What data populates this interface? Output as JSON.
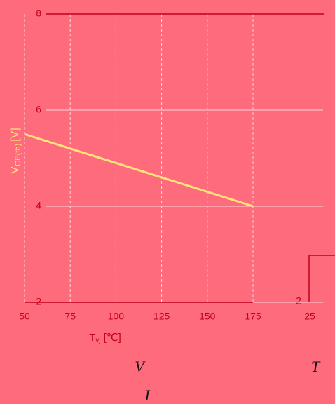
{
  "chart_data": {
    "type": "line",
    "y_label_main": "V",
    "y_label_sub": "GE(th)",
    "y_label_unit": "[V]",
    "x_label_main": "T",
    "x_label_sub": "vj",
    "x_label_unit": "[℃]",
    "x": [
      50,
      75,
      100,
      125,
      150,
      175
    ],
    "series": [
      {
        "name": "VGE(th)",
        "color": "#ffe37a",
        "values": [
          5.5,
          5.2,
          4.9,
          4.6,
          4.3,
          4.0
        ]
      }
    ],
    "xlim": [
      50,
      175
    ],
    "xticks": [
      50,
      75,
      100,
      125,
      150,
      175
    ],
    "ylim": [
      2,
      8
    ],
    "yticks": [
      2,
      4,
      6,
      8
    ],
    "grid": true,
    "annotations": [
      "V",
      "T",
      "I",
      "25",
      "2"
    ]
  }
}
